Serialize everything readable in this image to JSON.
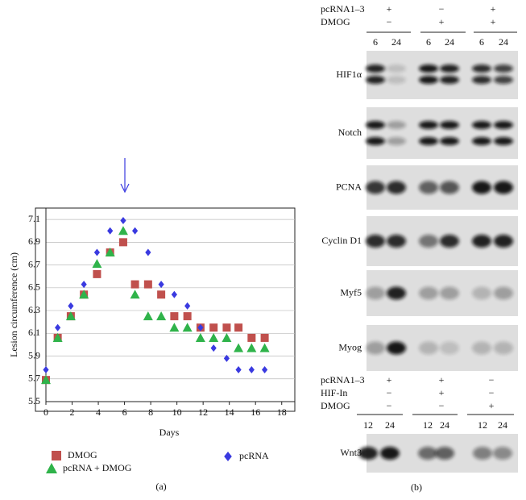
{
  "chart_data": {
    "type": "scatter",
    "x_label": "Days",
    "y_label": "Lesion circumference (cm)",
    "xlim": [
      0,
      19
    ],
    "xticks": [
      0,
      2,
      4,
      6,
      8,
      10,
      12,
      14,
      16,
      18
    ],
    "ylim": [
      5.5,
      7.2
    ],
    "yticks": [
      5.5,
      5.7,
      5.9,
      6.1,
      6.3,
      6.5,
      6.7,
      6.9,
      7.1
    ],
    "grid": true,
    "series": [
      {
        "name": "DMOG",
        "color": "#c0504d",
        "marker": "square",
        "x": [
          0,
          0.9,
          1.9,
          2.9,
          3.9,
          4.9,
          5.9,
          6.8,
          7.8,
          8.8,
          9.8,
          10.8,
          11.8,
          12.8,
          13.8,
          14.7,
          15.7,
          16.7
        ],
        "values": [
          5.69,
          6.06,
          6.25,
          6.44,
          6.62,
          6.81,
          6.9,
          6.53,
          6.53,
          6.44,
          6.25,
          6.25,
          6.15,
          6.15,
          6.15,
          6.15,
          6.06,
          6.06
        ]
      },
      {
        "name": "pcRNA + DMOG",
        "color": "#2fb34a",
        "marker": "triangle",
        "x": [
          0,
          0.9,
          1.9,
          2.9,
          3.9,
          4.9,
          5.9,
          6.8,
          7.8,
          8.8,
          9.8,
          10.8,
          11.8,
          12.8,
          13.8,
          14.7,
          15.7,
          16.7
        ],
        "values": [
          5.69,
          6.06,
          6.25,
          6.44,
          6.71,
          6.81,
          7.0,
          6.44,
          6.25,
          6.25,
          6.15,
          6.15,
          6.06,
          6.06,
          6.06,
          5.97,
          5.97,
          5.97
        ]
      },
      {
        "name": "pcRNA",
        "color": "#3a3ae0",
        "marker": "diamond",
        "x": [
          0,
          0.9,
          1.9,
          2.9,
          3.9,
          4.9,
          5.9,
          6.8,
          7.8,
          8.8,
          9.8,
          10.8,
          11.8,
          12.8,
          13.8,
          14.7,
          15.7,
          16.7
        ],
        "values": [
          5.78,
          6.15,
          6.34,
          6.53,
          6.81,
          7.0,
          7.09,
          7.0,
          6.81,
          6.53,
          6.44,
          6.34,
          6.15,
          5.97,
          5.88,
          5.78,
          5.78,
          5.78
        ]
      }
    ],
    "caption": "(a)"
  },
  "panel_b": {
    "caption": "(b)",
    "top_conditions": [
      [
        "pcRNA1–3",
        "+",
        "−",
        "+"
      ],
      [
        "DMOG",
        "−",
        "+",
        "+"
      ]
    ],
    "top_times": [
      "6",
      "24",
      "6",
      "24",
      "6",
      "24"
    ],
    "top_blots": [
      "HIF1α",
      "Notch",
      "PCNA",
      "Cyclin D1",
      "Myf5",
      "Myog"
    ],
    "bottom_conditions": [
      [
        "pcRNA1–3",
        "+",
        "+",
        "−"
      ],
      [
        "HIF-In",
        "−",
        "+",
        "−"
      ],
      [
        "DMOG",
        "−",
        "−",
        "+"
      ]
    ],
    "bottom_times": [
      "12",
      "24",
      "12",
      "24",
      "12",
      "24"
    ],
    "bottom_blots": [
      "Wnt3"
    ]
  }
}
